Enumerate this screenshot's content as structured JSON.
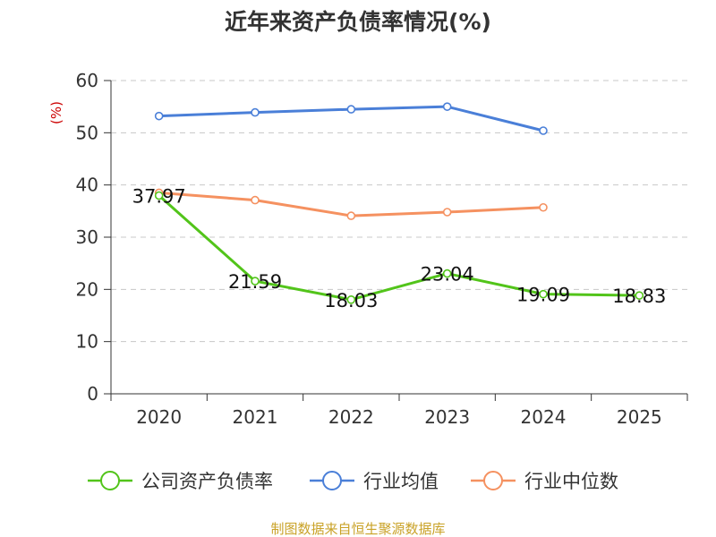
{
  "chart_data": {
    "type": "line",
    "title": "近年来资产负债率情况(%)",
    "ylabel": "(%)",
    "xlabel": "",
    "categories": [
      "2020",
      "2021",
      "2022",
      "2023",
      "2024",
      "2025"
    ],
    "y_ticks": [
      "0",
      "10",
      "20",
      "30",
      "40",
      "50",
      "60"
    ],
    "ylim": [
      0,
      60
    ],
    "grid": true,
    "legend_position": "bottom",
    "series": [
      {
        "name": "公司资产负债率",
        "color": "#52c41a",
        "values": [
          37.97,
          21.59,
          18.03,
          23.04,
          19.09,
          18.83
        ],
        "labels": [
          "37.97",
          "21.59",
          "18.03",
          "23.04",
          "19.09",
          "18.83"
        ]
      },
      {
        "name": "行业均值",
        "color": "#4a7fd8",
        "values": [
          53.2,
          53.9,
          54.5,
          55.0,
          50.4,
          null
        ]
      },
      {
        "name": "行业中位数",
        "color": "#f59160",
        "values": [
          38.5,
          37.1,
          34.1,
          34.8,
          35.7,
          null
        ]
      }
    ],
    "source": "制图数据来自恒生聚源数据库"
  }
}
